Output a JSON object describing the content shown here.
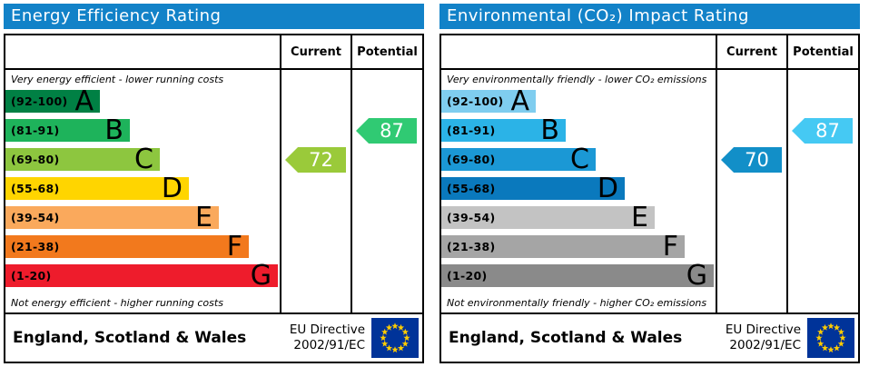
{
  "chart_data": [
    {
      "type": "bar",
      "title": "Energy Efficiency Rating",
      "categories": [
        "A (92-100)",
        "B (81-91)",
        "C (69-80)",
        "D (55-68)",
        "E (39-54)",
        "F (21-38)",
        "G (1-20)"
      ],
      "series": [
        {
          "name": "Current",
          "values": [
            72
          ],
          "band": "C"
        },
        {
          "name": "Potential",
          "values": [
            87
          ],
          "band": "B"
        }
      ],
      "xlabel": "",
      "ylabel": "",
      "axis_range": [
        1,
        100
      ],
      "top_annotation": "Very energy efficient - lower running costs",
      "bottom_annotation": "Not energy efficient - higher running costs"
    },
    {
      "type": "bar",
      "title": "Environmental (CO₂) Impact Rating",
      "categories": [
        "A (92-100)",
        "B (81-91)",
        "C (69-80)",
        "D (55-68)",
        "E (39-54)",
        "F (21-38)",
        "G (1-20)"
      ],
      "series": [
        {
          "name": "Current",
          "values": [
            70
          ],
          "band": "C"
        },
        {
          "name": "Potential",
          "values": [
            87
          ],
          "band": "B"
        }
      ],
      "xlabel": "",
      "ylabel": "",
      "axis_range": [
        1,
        100
      ],
      "top_annotation": "Very environmentally friendly - lower CO₂ emissions",
      "bottom_annotation": "Not environmentally friendly - higher CO₂ emissions"
    }
  ],
  "panels": [
    {
      "title": "Energy Efficiency Rating",
      "columns": {
        "current": "Current",
        "potential": "Potential"
      },
      "top_note": "Very energy efficient - lower running costs",
      "bottom_note": "Not energy efficient - higher running costs",
      "bands": [
        {
          "letter": "A",
          "range": "(92-100)",
          "color": "#008044"
        },
        {
          "letter": "B",
          "range": "(81-91)",
          "color": "#1eb35b"
        },
        {
          "letter": "C",
          "range": "(69-80)",
          "color": "#8dc63f"
        },
        {
          "letter": "D",
          "range": "(55-68)",
          "color": "#ffd500"
        },
        {
          "letter": "E",
          "range": "(39-54)",
          "color": "#faa95c"
        },
        {
          "letter": "F",
          "range": "(21-38)",
          "color": "#f2791d"
        },
        {
          "letter": "G",
          "range": "(1-20)",
          "color": "#ee1c2c"
        }
      ],
      "current": {
        "value": "72",
        "band": "C",
        "color": "#9aca3a"
      },
      "potential": {
        "value": "87",
        "band": "B",
        "color": "#30ca73"
      },
      "footer": {
        "region": "England, Scotland & Wales",
        "directive_line1": "EU Directive",
        "directive_line2": "2002/91/EC",
        "flag_blue": "#003399",
        "flag_star": "#ffcc00"
      }
    },
    {
      "title": "Environmental (CO₂) Impact Rating",
      "columns": {
        "current": "Current",
        "potential": "Potential"
      },
      "top_note": "Very environmentally friendly - lower CO₂ emissions",
      "bottom_note": "Not environmentally friendly - higher CO₂ emissions",
      "bands": [
        {
          "letter": "A",
          "range": "(92-100)",
          "color": "#7fcdef"
        },
        {
          "letter": "B",
          "range": "(81-91)",
          "color": "#2bb3e7"
        },
        {
          "letter": "C",
          "range": "(69-80)",
          "color": "#1b98d5"
        },
        {
          "letter": "D",
          "range": "(55-68)",
          "color": "#0a79bd"
        },
        {
          "letter": "E",
          "range": "(39-54)",
          "color": "#c3c3c3"
        },
        {
          "letter": "F",
          "range": "(21-38)",
          "color": "#a5a5a5"
        },
        {
          "letter": "G",
          "range": "(1-20)",
          "color": "#8a8a8a"
        }
      ],
      "current": {
        "value": "70",
        "band": "C",
        "color": "#128fc8"
      },
      "potential": {
        "value": "87",
        "band": "B",
        "color": "#45c9f3"
      },
      "footer": {
        "region": "England, Scotland & Wales",
        "directive_line1": "EU Directive",
        "directive_line2": "2002/91/EC",
        "flag_blue": "#003399",
        "flag_star": "#ffcc00"
      }
    }
  ]
}
